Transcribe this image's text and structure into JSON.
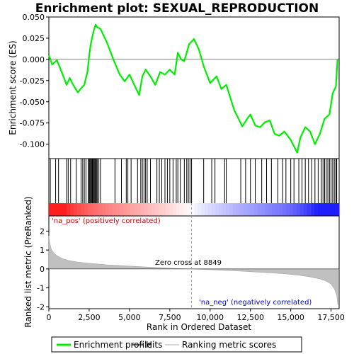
{
  "chart_data": {
    "type": "line",
    "title": "Enrichment plot: SEXUAL_REPRODUCTION",
    "top_panel": {
      "ylabel": "Enrichment score (ES)",
      "ylim": [
        -0.117,
        0.05
      ],
      "yticks": [
        0.05,
        0.025,
        0.0,
        -0.025,
        -0.05,
        -0.075,
        -0.1
      ],
      "ytick_labels": [
        "0.050",
        "0.025",
        "0.000",
        "-0.025",
        "-0.050",
        "-0.075",
        "-0.100"
      ],
      "series": [
        {
          "name": "Enrichment profile",
          "color": "#00ee00",
          "x": [
            0,
            200,
            500,
            800,
            1100,
            1300,
            1500,
            1800,
            2000,
            2200,
            2400,
            2500,
            2600,
            2700,
            2800,
            2900,
            3000,
            3200,
            3600,
            4000,
            4400,
            4700,
            5000,
            5300,
            5600,
            5800,
            6000,
            6300,
            6600,
            6900,
            7200,
            7500,
            7800,
            8000,
            8200,
            8400,
            8700,
            9000,
            9300,
            9600,
            10000,
            10400,
            10700,
            11000,
            11500,
            12000,
            12300,
            12500,
            12800,
            13100,
            13400,
            13700,
            14000,
            14300,
            14600,
            15000,
            15400,
            15600,
            15900,
            16200,
            16500,
            16800,
            17100,
            17400,
            17600,
            17800,
            17900
          ],
          "y": [
            0.005,
            -0.006,
            -0.001,
            -0.015,
            -0.03,
            -0.022,
            -0.03,
            -0.039,
            -0.034,
            -0.03,
            -0.014,
            0.004,
            0.018,
            0.027,
            0.035,
            0.041,
            0.038,
            0.036,
            0.02,
            0.0,
            -0.018,
            -0.026,
            -0.018,
            -0.03,
            -0.042,
            -0.02,
            -0.012,
            -0.02,
            -0.03,
            -0.015,
            -0.018,
            -0.012,
            -0.018,
            0.008,
            0.0,
            -0.002,
            0.018,
            0.024,
            0.012,
            -0.008,
            -0.028,
            -0.02,
            -0.035,
            -0.03,
            -0.06,
            -0.079,
            -0.07,
            -0.065,
            -0.078,
            -0.08,
            -0.074,
            -0.072,
            -0.088,
            -0.09,
            -0.085,
            -0.095,
            -0.11,
            -0.092,
            -0.08,
            -0.085,
            -0.1,
            -0.088,
            -0.07,
            -0.065,
            -0.04,
            -0.032,
            0.0
          ]
        }
      ]
    },
    "hits": {
      "name": "Hits",
      "x": [
        90,
        420,
        600,
        1100,
        1200,
        1350,
        1700,
        2000,
        2100,
        2200,
        2300,
        2450,
        2500,
        2550,
        2600,
        2650,
        2700,
        2750,
        2800,
        2850,
        2900,
        2950,
        3000,
        3100,
        3200,
        4100,
        4500,
        4800,
        4900,
        5100,
        5500,
        5700,
        5800,
        5900,
        6000,
        6100,
        6300,
        6700,
        6850,
        7000,
        7200,
        7350,
        7500,
        7700,
        7900,
        8000,
        8150,
        8400,
        8550,
        8650,
        8750,
        8850,
        9600,
        10100,
        10300,
        10900,
        11000,
        11900,
        12200,
        12500,
        12800,
        13200,
        13500,
        13800,
        14200,
        14500,
        14700,
        15000,
        15200,
        15500,
        15700,
        15900,
        16100,
        16300,
        16500,
        16700,
        16900,
        17000,
        17100,
        17200,
        17300,
        17400,
        17500,
        17600,
        17700,
        17800,
        17850
      ]
    },
    "ranking_panel": {
      "ylabel": "Ranked list metric (PreRanked)",
      "ylim": [
        -2.1,
        2.8
      ],
      "yticks": [
        2,
        1,
        0,
        -1,
        -2
      ],
      "ytick_labels": [
        "2",
        "1",
        "0",
        "-1",
        "-2"
      ],
      "metric_x": [
        0,
        50,
        150,
        300,
        500,
        800,
        1200,
        1800,
        2600,
        3600,
        5000,
        6500,
        8000,
        8849,
        10000,
        11500,
        13000,
        14500,
        15500,
        16200,
        16800,
        17200,
        17500,
        17700,
        17850,
        17920
      ],
      "metric_y": [
        1.75,
        1.4,
        1.05,
        0.85,
        0.7,
        0.56,
        0.45,
        0.36,
        0.29,
        0.22,
        0.15,
        0.08,
        0.02,
        0.0,
        -0.04,
        -0.1,
        -0.17,
        -0.25,
        -0.33,
        -0.42,
        -0.52,
        -0.64,
        -0.8,
        -1.05,
        -1.4,
        -1.9
      ]
    },
    "xlabel": "Rank in Ordered Dataset",
    "xlim": [
      0,
      18000
    ],
    "xticks": [
      0,
      2500,
      5000,
      7500,
      10000,
      12500,
      15000,
      17500
    ],
    "xtick_labels": [
      "0",
      "2,500",
      "5,000",
      "7,500",
      "10,000",
      "12,500",
      "15,000",
      "17,500"
    ],
    "zero_cross": 8849,
    "annotations": {
      "pos_label": "'na_pos' (positively correlated)",
      "neg_label": "'na_neg' (negatively correlated)",
      "zero_cross_label": "Zero cross at 8849",
      "pos_color": "#cc0000",
      "neg_color": "#0000cc"
    },
    "legend": {
      "placement": "bottom",
      "items": [
        {
          "label": "Enrichment profile",
          "color": "#00ee00",
          "kind": "line"
        },
        {
          "label": "Hits",
          "color": "#000000",
          "kind": "line"
        },
        {
          "label": "Ranking metric scores",
          "color": "#c0c0c0",
          "kind": "line"
        }
      ]
    }
  }
}
